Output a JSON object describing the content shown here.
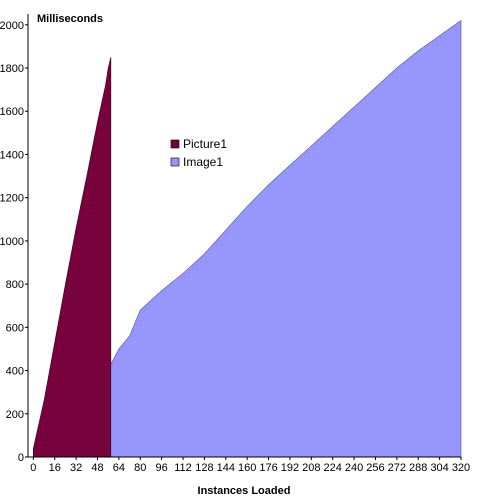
{
  "chart_data": {
    "type": "area",
    "ylabel": "Milliseconds",
    "xlabel": "Instances Loaded",
    "xlim": [
      -4,
      320
    ],
    "ylim": [
      0,
      2050
    ],
    "y_ticks": [
      0,
      200,
      400,
      600,
      800,
      1000,
      1200,
      1400,
      1600,
      1800,
      2000
    ],
    "y_tick_labels": [
      "0",
      "200",
      "400",
      "600",
      "800",
      "1000",
      "1200",
      "1400",
      "1600",
      "1800",
      "2000"
    ],
    "x_ticks": [
      0,
      16,
      32,
      48,
      64,
      80,
      96,
      112,
      128,
      144,
      160,
      176,
      192,
      208,
      224,
      240,
      256,
      272,
      288,
      304,
      320
    ],
    "x_tick_labels": [
      "0",
      "16",
      "32",
      "48",
      "64",
      "80",
      "96",
      "112",
      "128",
      "144",
      "160",
      "176",
      "192",
      "208",
      "224",
      "240",
      "256",
      "272",
      "288",
      "304",
      "320"
    ],
    "grid": false,
    "legend": "center",
    "series": [
      {
        "name": "Picture1",
        "color": "#800040",
        "x": [
          0,
          8,
          16,
          24,
          32,
          40,
          48,
          54,
          56,
          58
        ],
        "values": [
          40,
          260,
          530,
          800,
          1060,
          1300,
          1550,
          1720,
          1800,
          1850
        ]
      },
      {
        "name": "Image1",
        "color": "#9999ff",
        "x": [
          0,
          16,
          32,
          48,
          58,
          64,
          72,
          80,
          96,
          112,
          128,
          144,
          160,
          176,
          192,
          208,
          224,
          240,
          256,
          272,
          288,
          304,
          320
        ],
        "values": [
          40,
          160,
          260,
          360,
          430,
          500,
          560,
          680,
          770,
          850,
          940,
          1050,
          1160,
          1260,
          1350,
          1440,
          1530,
          1620,
          1710,
          1800,
          1880,
          1950,
          2020
        ]
      }
    ]
  }
}
